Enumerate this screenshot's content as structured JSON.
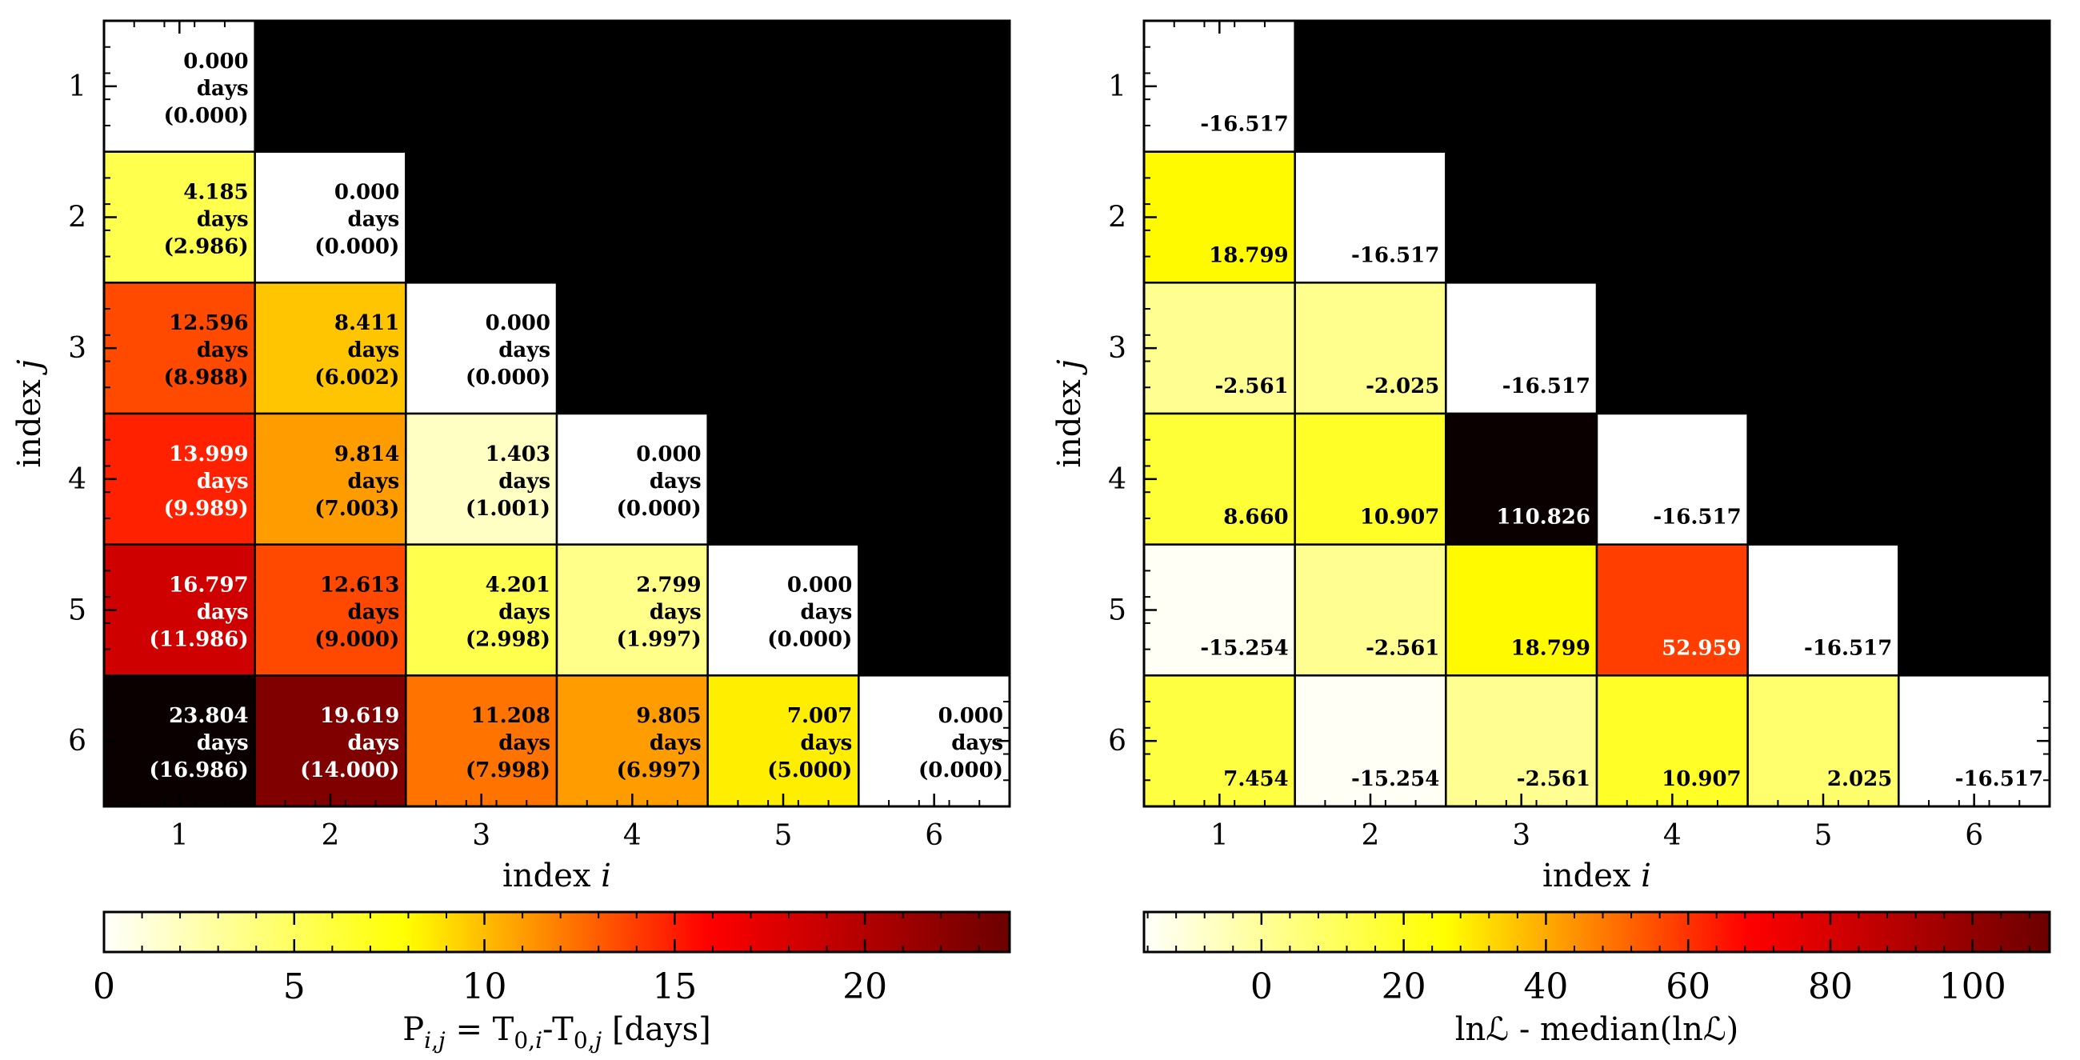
{
  "chart_data": [
    {
      "type": "heatmap",
      "panel": "left",
      "x_categories": [
        "1",
        "2",
        "3",
        "4",
        "5",
        "6"
      ],
      "y_categories": [
        "1",
        "2",
        "3",
        "4",
        "5",
        "6"
      ],
      "xlabel": "index i",
      "ylabel": "index j",
      "masked": "upper-triangle (i > j) shown in black",
      "colormap": "hot_r",
      "clim": [
        0,
        23.804
      ],
      "colorbar": {
        "label": "P_{i,j} = T_{0,i}-T_{0,j} [days]",
        "ticks": [
          "0",
          "5",
          "10",
          "15",
          "20"
        ],
        "tick_values": [
          0,
          5,
          10,
          15,
          20
        ],
        "placement": "bottom"
      },
      "unit": "days",
      "cells": [
        {
          "i": 1,
          "j": 1,
          "value": 0.0,
          "line1": "0.000",
          "line2": "days",
          "line3": "(0.000)"
        },
        {
          "i": 1,
          "j": 2,
          "value": 4.185,
          "line1": "4.185",
          "line2": "days",
          "line3": "(2.986)"
        },
        {
          "i": 2,
          "j": 2,
          "value": 0.0,
          "line1": "0.000",
          "line2": "days",
          "line3": "(0.000)"
        },
        {
          "i": 1,
          "j": 3,
          "value": 12.596,
          "line1": "12.596",
          "line2": "days",
          "line3": "(8.988)"
        },
        {
          "i": 2,
          "j": 3,
          "value": 8.411,
          "line1": "8.411",
          "line2": "days",
          "line3": "(6.002)"
        },
        {
          "i": 3,
          "j": 3,
          "value": 0.0,
          "line1": "0.000",
          "line2": "days",
          "line3": "(0.000)"
        },
        {
          "i": 1,
          "j": 4,
          "value": 13.999,
          "line1": "13.999",
          "line2": "days",
          "line3": "(9.989)"
        },
        {
          "i": 2,
          "j": 4,
          "value": 9.814,
          "line1": "9.814",
          "line2": "days",
          "line3": "(7.003)"
        },
        {
          "i": 3,
          "j": 4,
          "value": 1.403,
          "line1": "1.403",
          "line2": "days",
          "line3": "(1.001)"
        },
        {
          "i": 4,
          "j": 4,
          "value": 0.0,
          "line1": "0.000",
          "line2": "days",
          "line3": "(0.000)"
        },
        {
          "i": 1,
          "j": 5,
          "value": 16.797,
          "line1": "16.797",
          "line2": "days",
          "line3": "(11.986)"
        },
        {
          "i": 2,
          "j": 5,
          "value": 12.613,
          "line1": "12.613",
          "line2": "days",
          "line3": "(9.000)"
        },
        {
          "i": 3,
          "j": 5,
          "value": 4.201,
          "line1": "4.201",
          "line2": "days",
          "line3": "(2.998)"
        },
        {
          "i": 4,
          "j": 5,
          "value": 2.799,
          "line1": "2.799",
          "line2": "days",
          "line3": "(1.997)"
        },
        {
          "i": 5,
          "j": 5,
          "value": 0.0,
          "line1": "0.000",
          "line2": "days",
          "line3": "(0.000)"
        },
        {
          "i": 1,
          "j": 6,
          "value": 23.804,
          "line1": "23.804",
          "line2": "days",
          "line3": "(16.986)"
        },
        {
          "i": 2,
          "j": 6,
          "value": 19.619,
          "line1": "19.619",
          "line2": "days",
          "line3": "(14.000)"
        },
        {
          "i": 3,
          "j": 6,
          "value": 11.208,
          "line1": "11.208",
          "line2": "days",
          "line3": "(7.998)"
        },
        {
          "i": 4,
          "j": 6,
          "value": 9.805,
          "line1": "9.805",
          "line2": "days",
          "line3": "(6.997)"
        },
        {
          "i": 5,
          "j": 6,
          "value": 7.007,
          "line1": "7.007",
          "line2": "days",
          "line3": "(5.000)"
        },
        {
          "i": 6,
          "j": 6,
          "value": 0.0,
          "line1": "0.000",
          "line2": "days",
          "line3": "(0.000)"
        }
      ]
    },
    {
      "type": "heatmap",
      "panel": "right",
      "x_categories": [
        "1",
        "2",
        "3",
        "4",
        "5",
        "6"
      ],
      "y_categories": [
        "1",
        "2",
        "3",
        "4",
        "5",
        "6"
      ],
      "xlabel": "index i",
      "ylabel": "index j",
      "masked": "upper-triangle (i > j) shown in black",
      "colormap": "hot_r",
      "clim": [
        -16.517,
        110.826
      ],
      "colorbar": {
        "label": "lnℒ - median(lnℒ)",
        "ticks": [
          "0",
          "20",
          "40",
          "60",
          "80",
          "100"
        ],
        "tick_values": [
          0,
          20,
          40,
          60,
          80,
          100
        ],
        "placement": "bottom"
      },
      "cells": [
        {
          "i": 1,
          "j": 1,
          "value": -16.517,
          "label": "-16.517"
        },
        {
          "i": 1,
          "j": 2,
          "value": 18.799,
          "label": "18.799"
        },
        {
          "i": 2,
          "j": 2,
          "value": -16.517,
          "label": "-16.517"
        },
        {
          "i": 1,
          "j": 3,
          "value": -2.561,
          "label": "-2.561"
        },
        {
          "i": 2,
          "j": 3,
          "value": -2.025,
          "label": "-2.025"
        },
        {
          "i": 3,
          "j": 3,
          "value": -16.517,
          "label": "-16.517"
        },
        {
          "i": 1,
          "j": 4,
          "value": 8.66,
          "label": "8.660"
        },
        {
          "i": 2,
          "j": 4,
          "value": 10.907,
          "label": "10.907"
        },
        {
          "i": 3,
          "j": 4,
          "value": 110.826,
          "label": "110.826"
        },
        {
          "i": 4,
          "j": 4,
          "value": -16.517,
          "label": "-16.517"
        },
        {
          "i": 1,
          "j": 5,
          "value": -15.254,
          "label": "-15.254"
        },
        {
          "i": 2,
          "j": 5,
          "value": -2.561,
          "label": "-2.561"
        },
        {
          "i": 3,
          "j": 5,
          "value": 18.799,
          "label": "18.799"
        },
        {
          "i": 4,
          "j": 5,
          "value": 52.959,
          "label": "52.959"
        },
        {
          "i": 5,
          "j": 5,
          "value": -16.517,
          "label": "-16.517"
        },
        {
          "i": 1,
          "j": 6,
          "value": 7.454,
          "label": "7.454"
        },
        {
          "i": 2,
          "j": 6,
          "value": -15.254,
          "label": "-15.254"
        },
        {
          "i": 3,
          "j": 6,
          "value": -2.561,
          "label": "-2.561"
        },
        {
          "i": 4,
          "j": 6,
          "value": 10.907,
          "label": "10.907"
        },
        {
          "i": 5,
          "j": 6,
          "value": 2.025,
          "label": "2.025"
        },
        {
          "i": 6,
          "j": 6,
          "value": -16.517,
          "label": "-16.517"
        }
      ]
    }
  ]
}
